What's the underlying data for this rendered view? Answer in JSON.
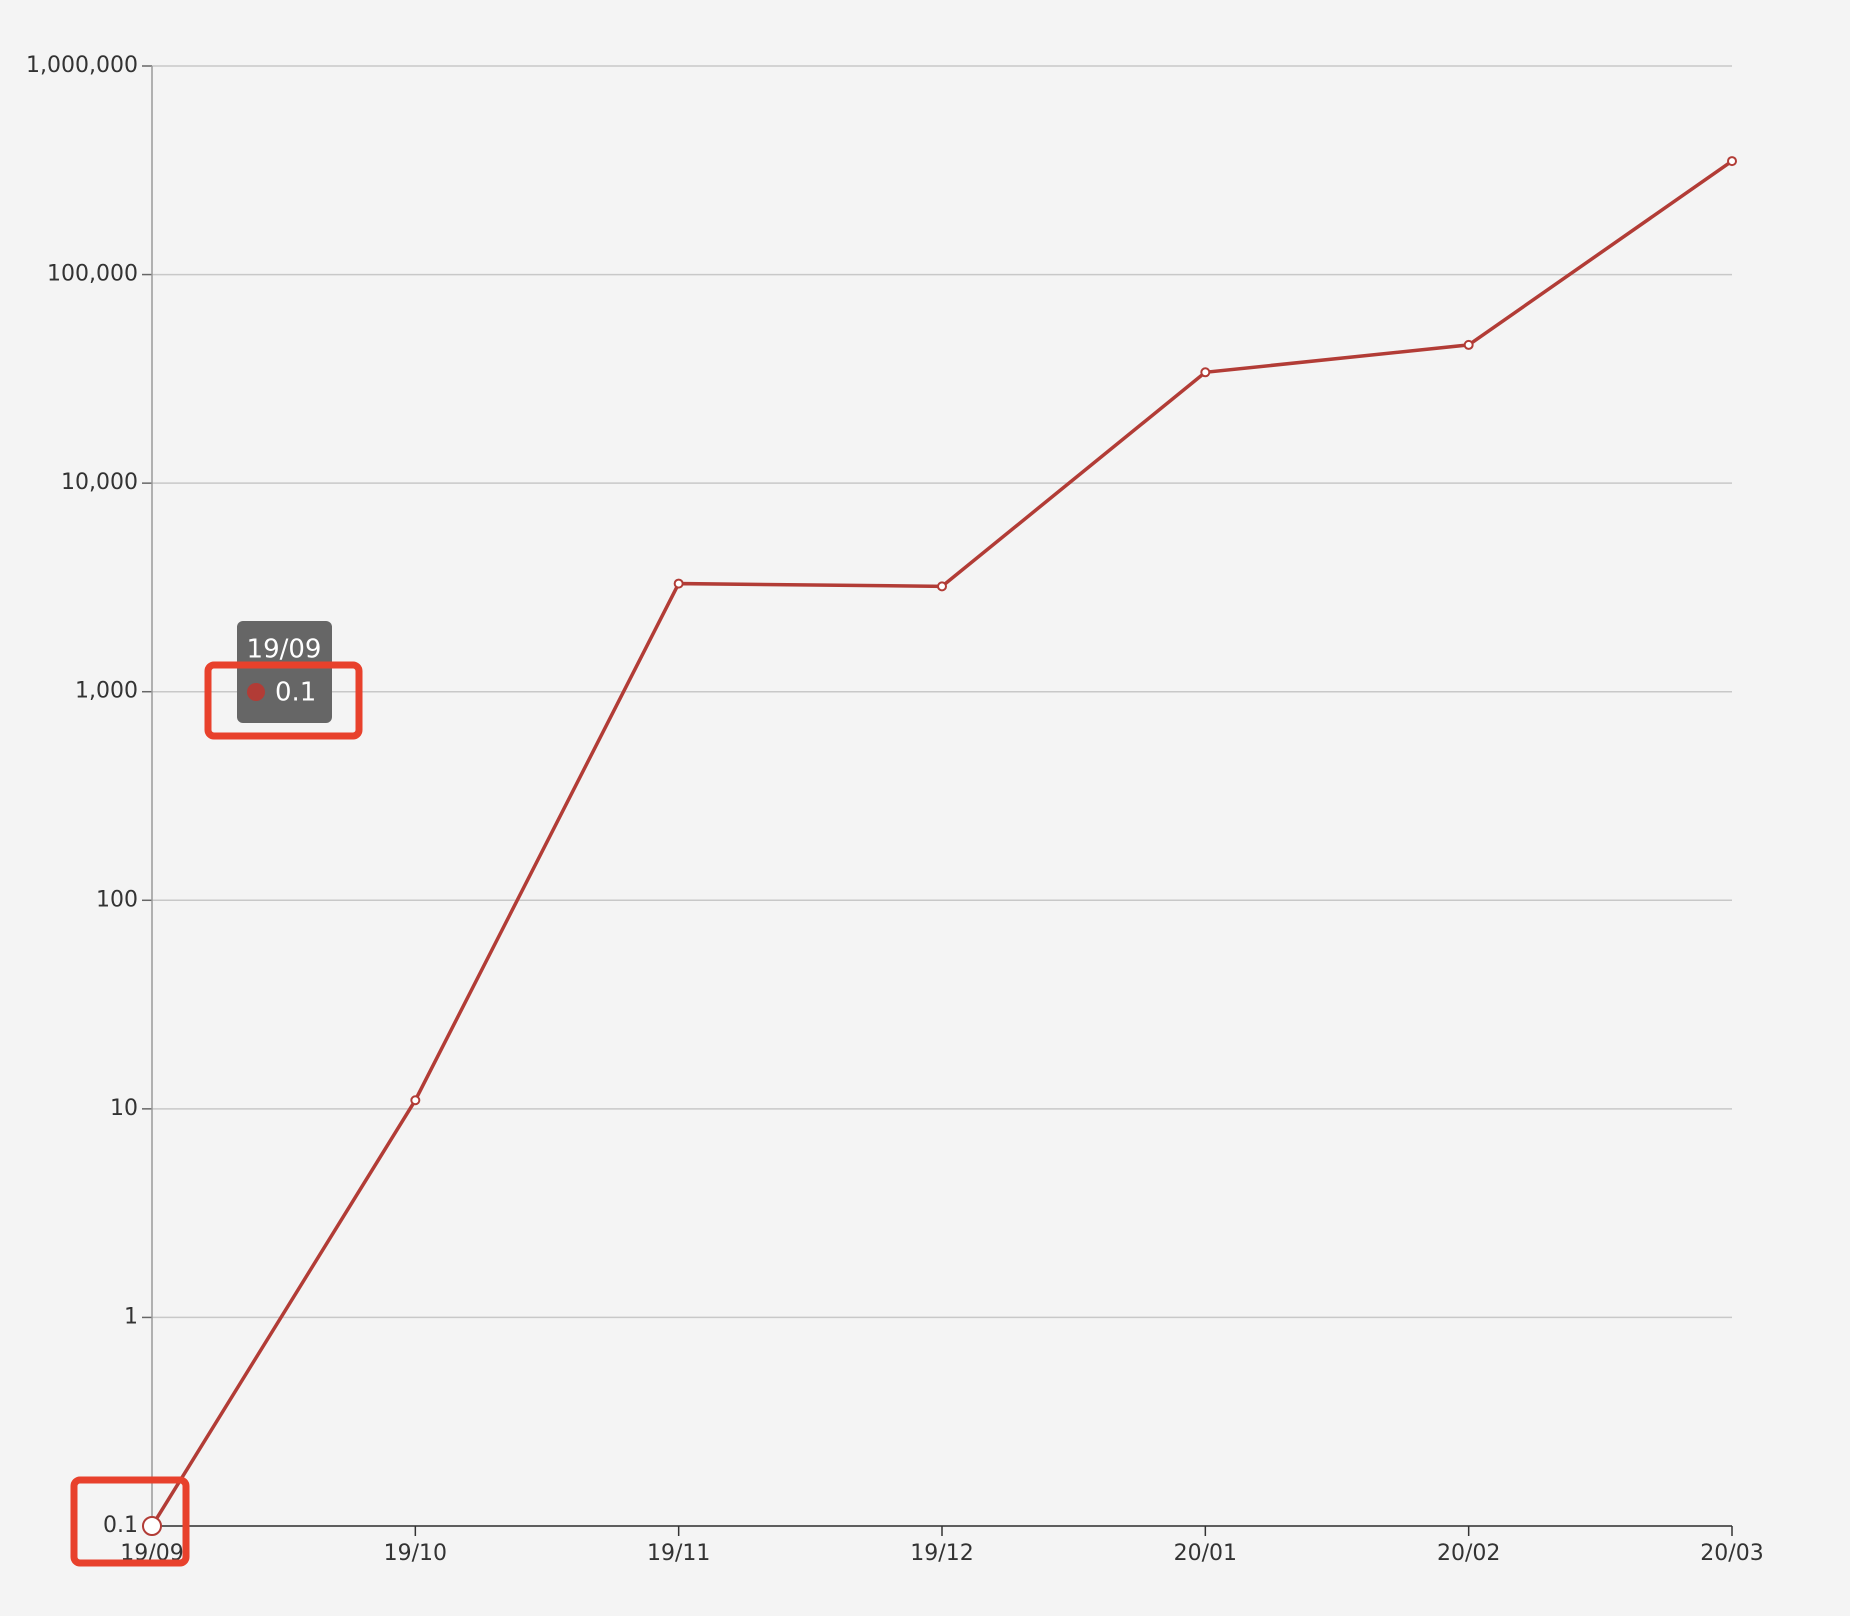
{
  "chart_data": {
    "type": "line",
    "categories": [
      "19/09",
      "19/10",
      "19/11",
      "19/12",
      "20/01",
      "20/02",
      "20/03"
    ],
    "series": [
      {
        "color": "#b23c36",
        "values": [
          0.1,
          11,
          3300,
          3200,
          34000,
          46000,
          350000
        ]
      }
    ],
    "ylim": [
      0.1,
      1000000
    ],
    "log_scale": true,
    "grid": true,
    "yticks": [
      0.1,
      1,
      10,
      100,
      {
        "value": 1000,
        "label": "1,000"
      },
      {
        "value": 10000,
        "label": "10,000"
      },
      {
        "value": 100000,
        "label": "100,000"
      },
      {
        "value": 1000000,
        "label": "1,000,000"
      }
    ]
  }
}
